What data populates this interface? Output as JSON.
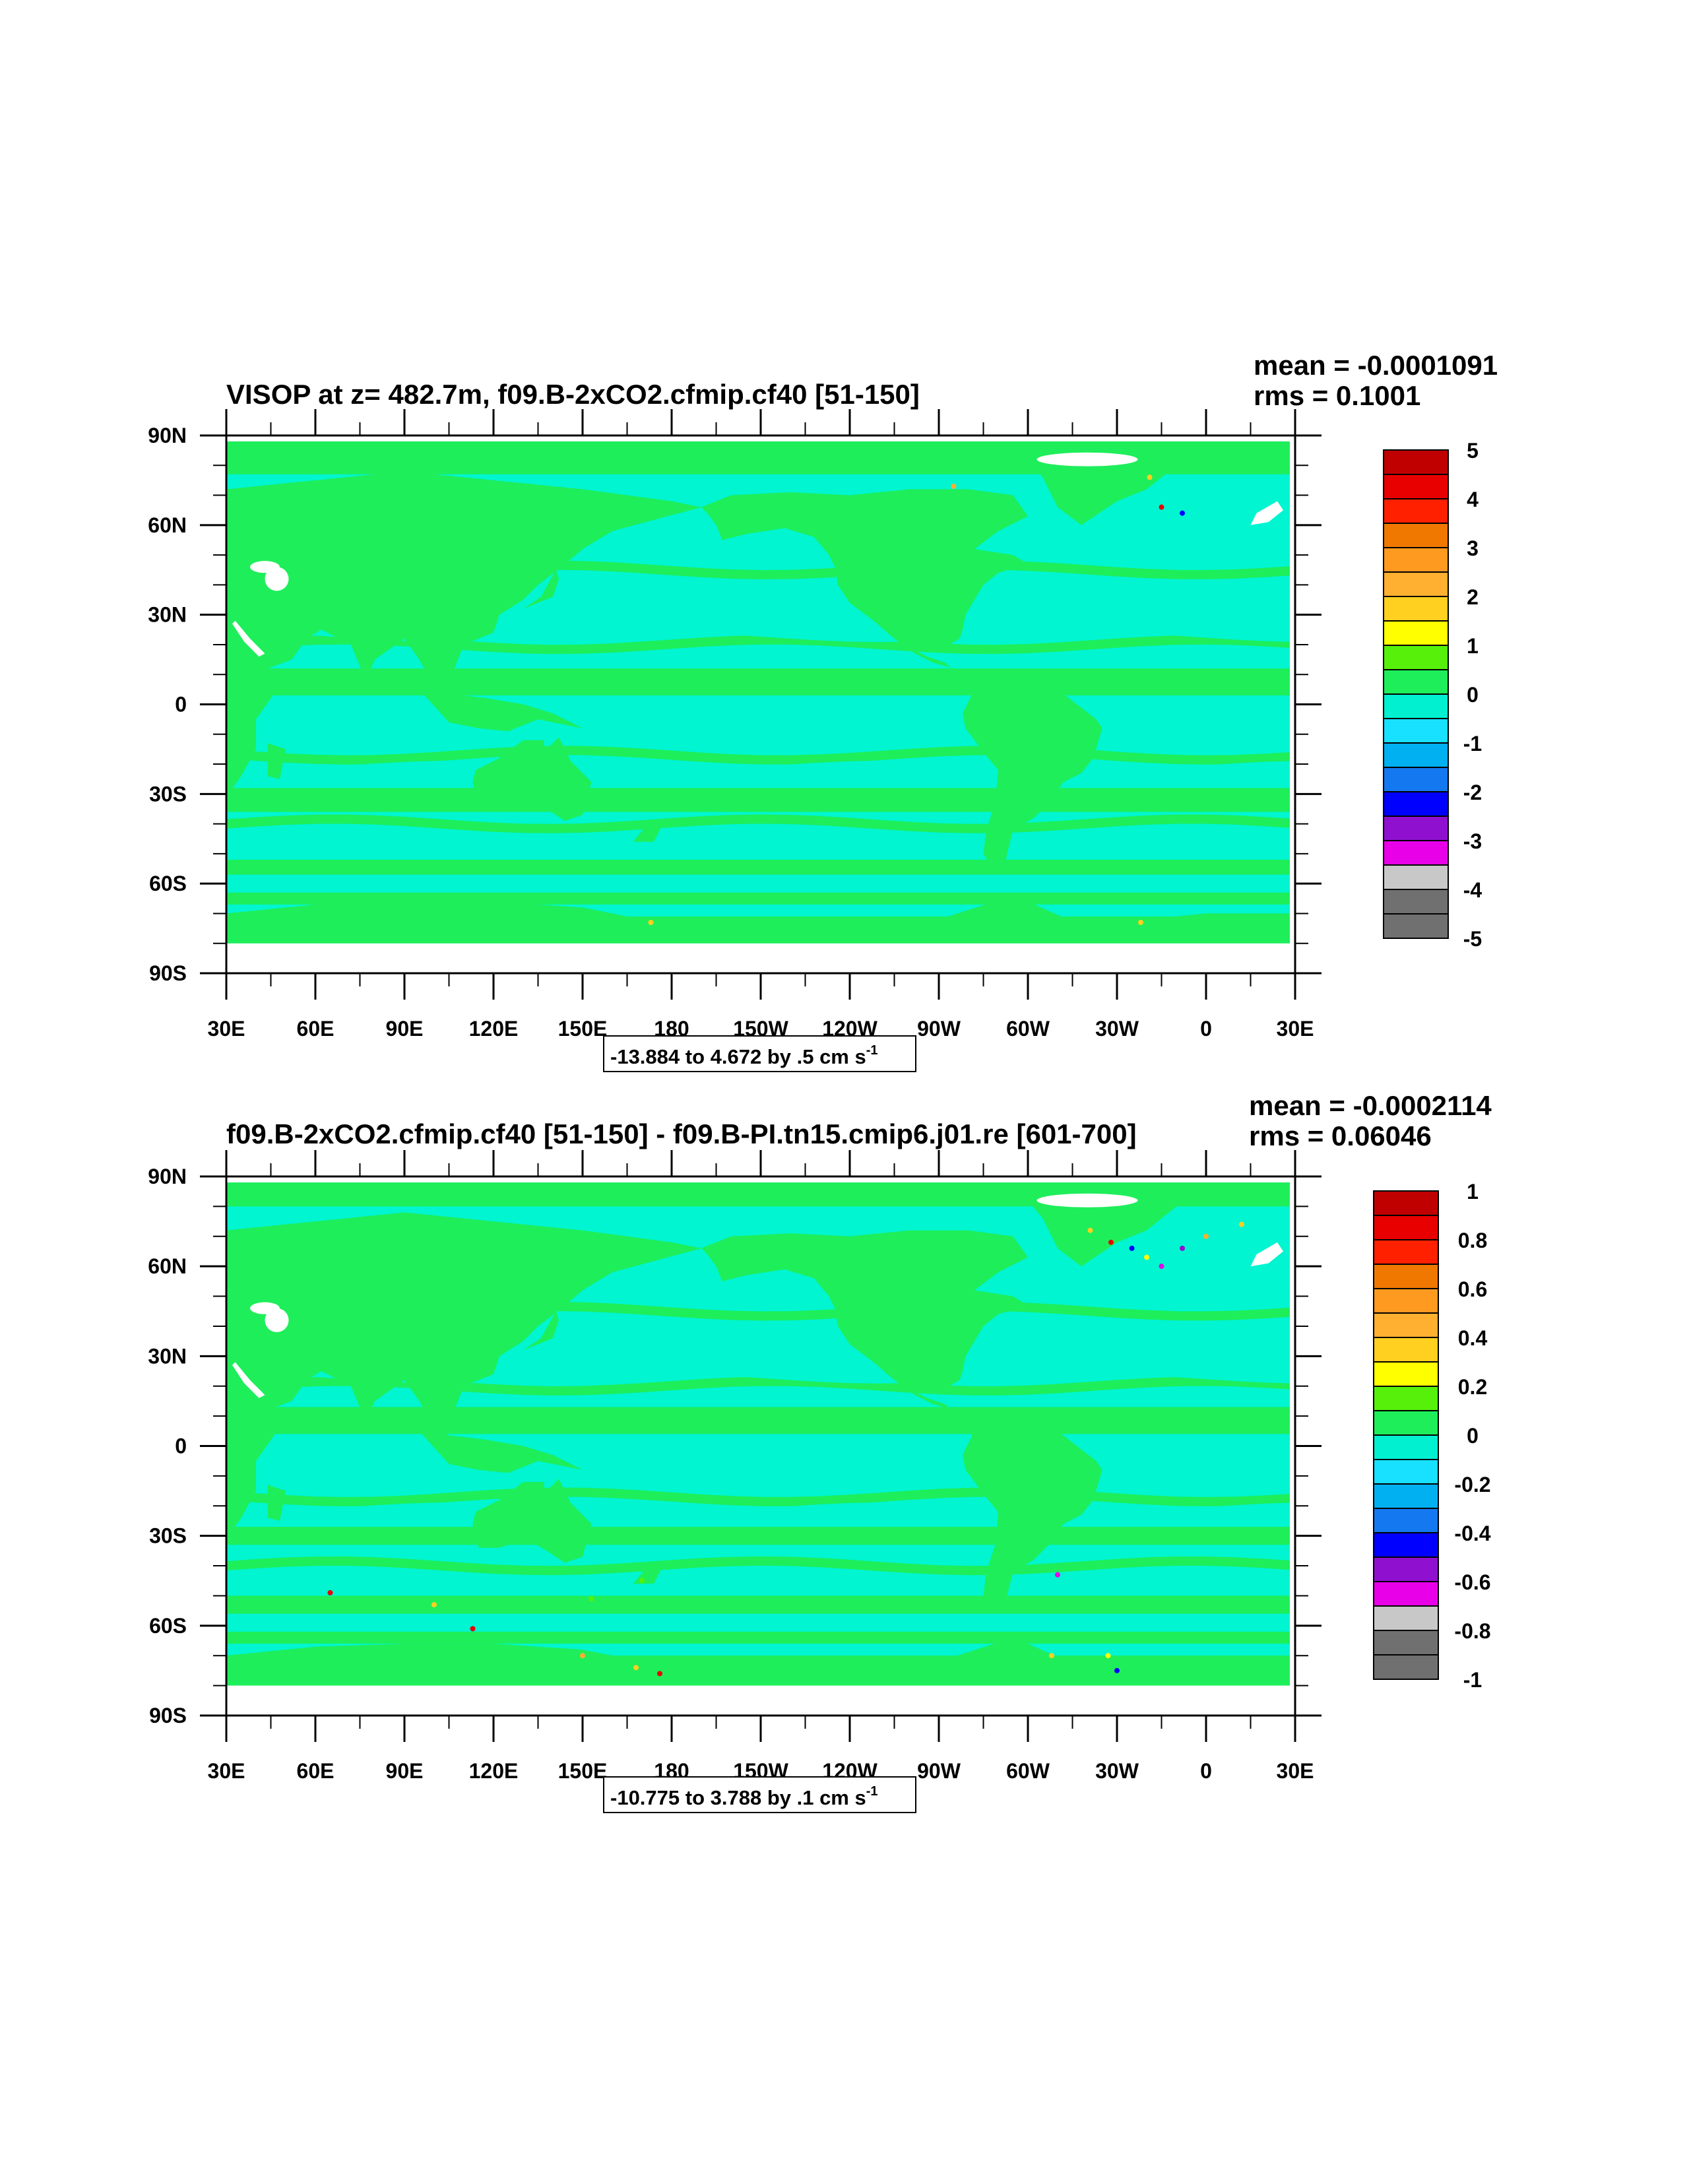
{
  "panels": [
    {
      "title": "VISOP at z= 482.7m, f09.B-2xCO2.cfmip.cf40 [51-150]",
      "mean_text": "mean = -0.0001091",
      "rms_text": "rms = 0.1001",
      "footer": "-13.884 to 4.672 by .5 cm s",
      "footer_sup": "-1",
      "lat_ticks": [
        "90N",
        "60N",
        "30N",
        "0",
        "30S",
        "60S",
        "90S"
      ],
      "lon_ticks": [
        "30E",
        "60E",
        "90E",
        "120E",
        "150E",
        "180",
        "150W",
        "120W",
        "90W",
        "60W",
        "30W",
        "0",
        "30E"
      ],
      "colorbar_labels": [
        "5",
        "4",
        "3",
        "2",
        "1",
        "0",
        "-1",
        "-2",
        "-3",
        "-4",
        "-5"
      ]
    },
    {
      "title": "f09.B-2xCO2.cfmip.cf40 [51-150] - f09.B-PI.tn15.cmip6.j01.re [601-700]",
      "mean_text": "mean = -0.0002114",
      "rms_text": "rms = 0.06046",
      "footer": "-10.775 to 3.788 by .1 cm s",
      "footer_sup": "-1",
      "lat_ticks": [
        "90N",
        "60N",
        "30N",
        "0",
        "30S",
        "60S",
        "90S"
      ],
      "lon_ticks": [
        "30E",
        "60E",
        "90E",
        "120E",
        "150E",
        "180",
        "150W",
        "120W",
        "90W",
        "60W",
        "30W",
        "0",
        "30E"
      ],
      "colorbar_labels": [
        "1",
        "0.8",
        "0.6",
        "0.4",
        "0.2",
        "0",
        "-0.2",
        "-0.4",
        "-0.6",
        "-0.8",
        "-1"
      ]
    }
  ],
  "colors": {
    "land_fill": "#1eee5a",
    "ocean_fill": "#00f5d0",
    "ocean_alt": "#14e6e6",
    "missing": "#ffffff",
    "palette_top_to_bottom": [
      "#c00000",
      "#e80000",
      "#ff2000",
      "#f07800",
      "#ff9a20",
      "#ffb030",
      "#ffd020",
      "#ffff00",
      "#56f00a",
      "#1eee5a",
      "#00f0d0",
      "#18e0ff",
      "#00b0f0",
      "#1478f0",
      "#0000ff",
      "#9010d0",
      "#e800e8",
      "#c8c8c8",
      "#707070"
    ]
  },
  "chart_data": [
    {
      "type": "heatmap",
      "title": "VISOP at z= 482.7m, f09.B-2xCO2.cfmip.cf40 [51-150]",
      "x_axis": "longitude",
      "xlim": [
        30,
        390
      ],
      "y_axis": "latitude",
      "ylim": [
        -90,
        90
      ],
      "data_extent_lat": [
        -80,
        88
      ],
      "colorbar_levels": [
        -5,
        -4.5,
        -4,
        -3.5,
        -3,
        -2.5,
        -2,
        -1.5,
        -1,
        -0.5,
        0,
        0.5,
        1,
        1.5,
        2,
        2.5,
        3,
        3.5,
        4,
        4.5,
        5
      ],
      "min": -13.884,
      "max": 4.672,
      "interval": 0.5,
      "units": "cm s-1",
      "mean": -0.0001091,
      "rms": 0.1001
    },
    {
      "type": "heatmap",
      "title": "f09.B-2xCO2.cfmip.cf40 [51-150] - f09.B-PI.tn15.cmip6.j01.re [601-700]",
      "x_axis": "longitude",
      "xlim": [
        30,
        390
      ],
      "y_axis": "latitude",
      "ylim": [
        -90,
        90
      ],
      "data_extent_lat": [
        -80,
        88
      ],
      "colorbar_levels": [
        -1,
        -0.9,
        -0.8,
        -0.7,
        -0.6,
        -0.5,
        -0.4,
        -0.3,
        -0.2,
        -0.1,
        0,
        0.1,
        0.2,
        0.3,
        0.4,
        0.5,
        0.6,
        0.7,
        0.8,
        0.9,
        1
      ],
      "min": -10.775,
      "max": 3.788,
      "interval": 0.1,
      "units": "cm s-1",
      "mean": -0.0002114,
      "rms": 0.06046
    }
  ]
}
